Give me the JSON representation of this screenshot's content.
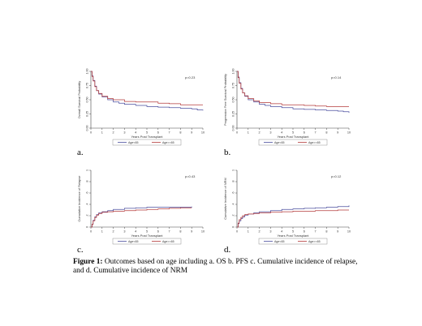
{
  "figure": {
    "caption_label": "Figure 1:",
    "caption_text": " Outcomes based on age including a. OS b. PFS c. Cumulative incidence of relapse, and d. Cumulative incidence of NRM"
  },
  "colors": {
    "young": "#4a4e9e",
    "old": "#b33a3a",
    "axis": "#444444",
    "text": "#333333"
  },
  "chart_data": [
    {
      "panel_letter": "a.",
      "type": "line",
      "step": true,
      "ylabel": "Overall Survival Probability",
      "xlabel": "Years Post Transplant",
      "annotation": "p=0.23",
      "xlim": [
        0,
        10
      ],
      "ylim": [
        0,
        1
      ],
      "xticks": [
        0,
        1,
        2,
        3,
        4,
        5,
        6,
        7,
        8,
        9,
        10
      ],
      "yticks": [
        0,
        0.25,
        0.5,
        0.75,
        1
      ],
      "yticklabels": [
        "0.00",
        "0.25",
        "0.50",
        "0.75",
        "1.00"
      ],
      "legend": [
        "Age<65",
        "Age>=65"
      ],
      "series": [
        {
          "name": "Age<65",
          "color": "#4a4e9e",
          "x": [
            0,
            0.1,
            0.2,
            0.35,
            0.5,
            0.7,
            1,
            1.5,
            2,
            2.5,
            3,
            4,
            5,
            6,
            7,
            8,
            9,
            9.5,
            10
          ],
          "y": [
            1.0,
            0.92,
            0.84,
            0.74,
            0.66,
            0.6,
            0.55,
            0.5,
            0.46,
            0.44,
            0.42,
            0.4,
            0.38,
            0.37,
            0.36,
            0.35,
            0.34,
            0.32,
            0.31
          ]
        },
        {
          "name": "Age>=65",
          "color": "#b33a3a",
          "x": [
            0,
            0.1,
            0.2,
            0.35,
            0.5,
            0.7,
            1,
            1.5,
            2,
            3,
            4,
            5,
            6,
            7,
            8,
            8.8,
            10
          ],
          "y": [
            1.0,
            0.91,
            0.83,
            0.73,
            0.66,
            0.61,
            0.56,
            0.52,
            0.5,
            0.47,
            0.46,
            0.46,
            0.44,
            0.43,
            0.41,
            0.41,
            0.41
          ]
        }
      ]
    },
    {
      "panel_letter": "b.",
      "type": "line",
      "step": true,
      "ylabel": "Progression Free Survival Probability",
      "xlabel": "Years Post Transplant",
      "annotation": "p=0.14",
      "xlim": [
        0,
        10
      ],
      "ylim": [
        0,
        1
      ],
      "xticks": [
        0,
        1,
        2,
        3,
        4,
        5,
        6,
        7,
        8,
        9,
        10
      ],
      "yticks": [
        0,
        0.25,
        0.5,
        0.75,
        1
      ],
      "yticklabels": [
        "0.00",
        "0.25",
        "0.50",
        "0.75",
        "1.00"
      ],
      "legend": [
        "Age<65",
        "Age>=65"
      ],
      "series": [
        {
          "name": "Age<65",
          "color": "#4a4e9e",
          "x": [
            0,
            0.1,
            0.2,
            0.35,
            0.5,
            0.7,
            1,
            1.5,
            2,
            2.5,
            3,
            4,
            5,
            6,
            7,
            8,
            9,
            9.5,
            10
          ],
          "y": [
            1.0,
            0.9,
            0.8,
            0.7,
            0.62,
            0.56,
            0.5,
            0.46,
            0.42,
            0.4,
            0.38,
            0.36,
            0.34,
            0.33,
            0.32,
            0.31,
            0.3,
            0.29,
            0.27
          ]
        },
        {
          "name": "Age>=65",
          "color": "#b33a3a",
          "x": [
            0,
            0.1,
            0.2,
            0.35,
            0.5,
            0.7,
            1,
            1.5,
            2,
            3,
            4,
            5,
            6,
            7,
            8,
            9,
            10
          ],
          "y": [
            1.0,
            0.89,
            0.79,
            0.69,
            0.62,
            0.57,
            0.52,
            0.48,
            0.45,
            0.43,
            0.41,
            0.41,
            0.4,
            0.39,
            0.38,
            0.38,
            0.38
          ]
        }
      ]
    },
    {
      "panel_letter": "c.",
      "type": "line",
      "step": true,
      "ylabel": "Cumulative Incidence of Relapse",
      "xlabel": "Years Post Transplant",
      "annotation": "p=0.43",
      "xlim": [
        0,
        10
      ],
      "ylim": [
        0,
        1
      ],
      "xticks": [
        0,
        1,
        2,
        3,
        4,
        5,
        6,
        7,
        8,
        9,
        10
      ],
      "yticks": [
        0,
        0.2,
        0.4,
        0.6,
        0.8,
        1
      ],
      "yticklabels": [
        "0",
        ".2",
        ".4",
        ".6",
        ".8",
        "1"
      ],
      "legend": [
        "Age<65",
        "Age>=65"
      ],
      "series": [
        {
          "name": "Age<65",
          "color": "#4a4e9e",
          "x": [
            0,
            0.1,
            0.2,
            0.35,
            0.5,
            0.7,
            1,
            1.5,
            2,
            3,
            4,
            5,
            6,
            7,
            8,
            9
          ],
          "y": [
            0,
            0.05,
            0.12,
            0.18,
            0.22,
            0.25,
            0.27,
            0.29,
            0.31,
            0.33,
            0.34,
            0.35,
            0.35,
            0.35,
            0.35,
            0.36
          ]
        },
        {
          "name": "Age>=65",
          "color": "#b33a3a",
          "x": [
            0,
            0.1,
            0.2,
            0.35,
            0.5,
            0.7,
            1,
            1.5,
            2,
            3,
            4,
            5,
            6,
            7,
            8,
            9
          ],
          "y": [
            0,
            0.05,
            0.11,
            0.17,
            0.21,
            0.24,
            0.26,
            0.27,
            0.28,
            0.29,
            0.3,
            0.31,
            0.32,
            0.33,
            0.34,
            0.34
          ]
        }
      ]
    },
    {
      "panel_letter": "d.",
      "type": "line",
      "step": true,
      "ylabel": "Cumulative Incidence of NRM",
      "xlabel": "Years Post Transplant",
      "annotation": "p=0.12",
      "xlim": [
        0,
        10
      ],
      "ylim": [
        0,
        1
      ],
      "xticks": [
        0,
        1,
        2,
        3,
        4,
        5,
        6,
        7,
        8,
        9,
        10
      ],
      "yticks": [
        0,
        0.2,
        0.4,
        0.6,
        0.8,
        1
      ],
      "yticklabels": [
        "0",
        ".2",
        ".4",
        ".6",
        ".8",
        "1"
      ],
      "legend": [
        "Age<65",
        "Age>=65"
      ],
      "series": [
        {
          "name": "Age<65",
          "color": "#4a4e9e",
          "x": [
            0,
            0.1,
            0.2,
            0.35,
            0.5,
            0.7,
            1,
            1.5,
            2,
            3,
            4,
            5,
            6,
            7,
            8,
            9,
            10
          ],
          "y": [
            0,
            0.06,
            0.11,
            0.15,
            0.18,
            0.21,
            0.23,
            0.25,
            0.27,
            0.29,
            0.31,
            0.32,
            0.33,
            0.34,
            0.35,
            0.36,
            0.38
          ]
        },
        {
          "name": "Age>=65",
          "color": "#b33a3a",
          "x": [
            0,
            0.1,
            0.2,
            0.35,
            0.5,
            0.7,
            1,
            1.5,
            2,
            3,
            4,
            5,
            6,
            7,
            8,
            9,
            10
          ],
          "y": [
            0,
            0.07,
            0.13,
            0.17,
            0.2,
            0.22,
            0.23,
            0.24,
            0.25,
            0.26,
            0.27,
            0.28,
            0.28,
            0.29,
            0.29,
            0.3,
            0.3
          ]
        }
      ]
    }
  ]
}
